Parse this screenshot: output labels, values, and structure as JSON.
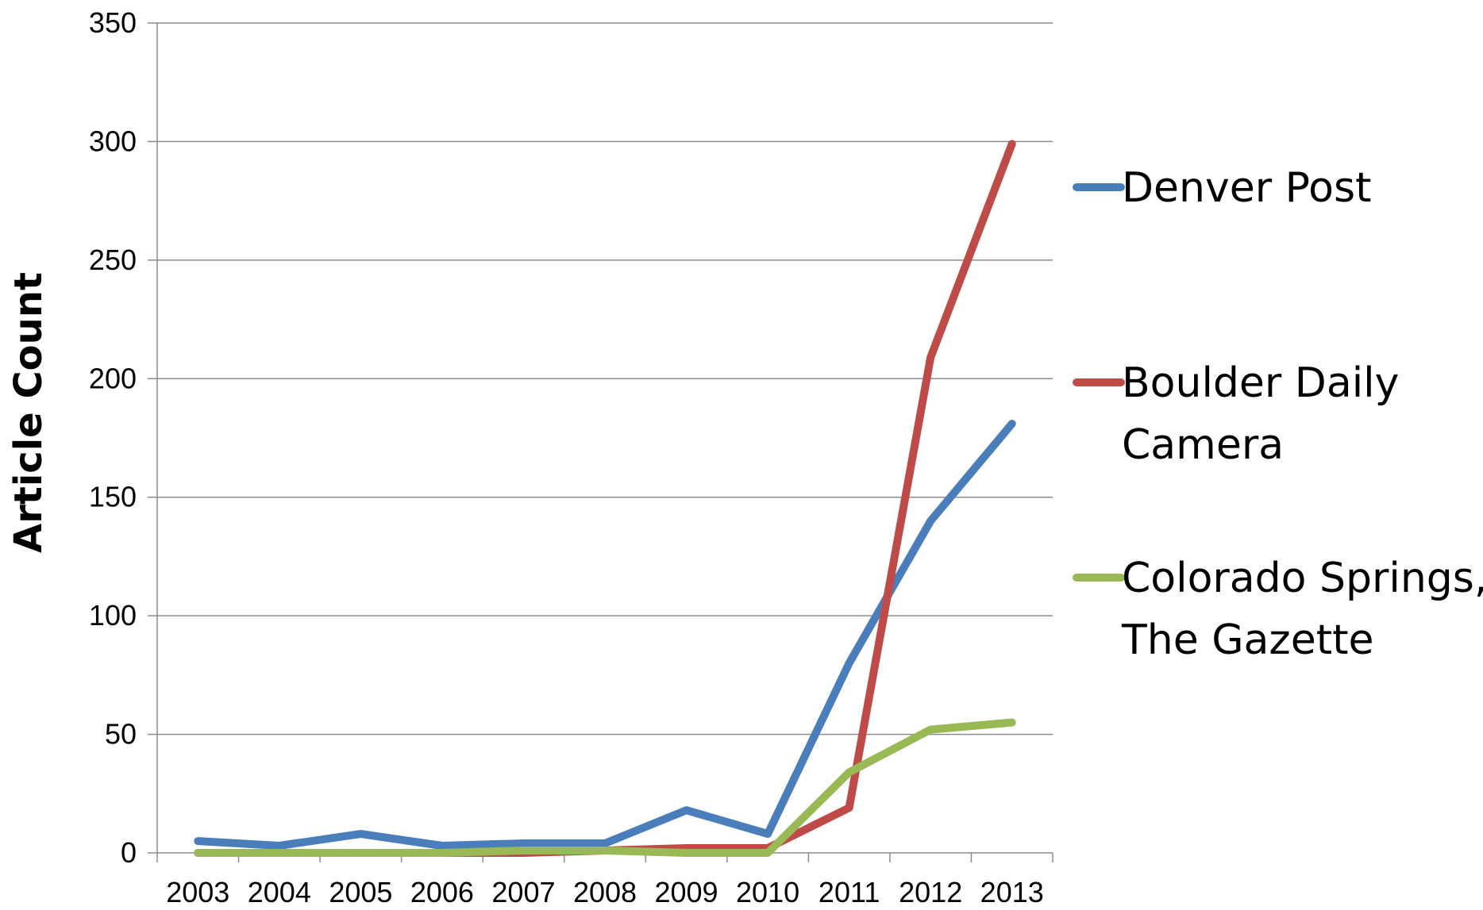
{
  "chart_data": {
    "type": "line",
    "ylabel": "Article Count",
    "xlabel": "",
    "ylim": [
      0,
      350
    ],
    "yticks": [
      0,
      50,
      100,
      150,
      200,
      250,
      300,
      350
    ],
    "grid": "horizontal",
    "legend_position": "right",
    "categories": [
      "2003",
      "2004",
      "2005",
      "2006",
      "2007",
      "2008",
      "2009",
      "2010",
      "2011",
      "2012",
      "2013"
    ],
    "series": [
      {
        "name": "Denver Post",
        "legend_lines": [
          "Denver Post"
        ],
        "color": "#4a7ebb",
        "values": [
          5,
          3,
          8,
          3,
          4,
          4,
          18,
          8,
          80,
          140,
          181
        ]
      },
      {
        "name": "Boulder Daily Camera",
        "legend_lines": [
          "Boulder Daily",
          "Camera"
        ],
        "color": "#be4b48",
        "values": [
          0,
          0,
          0,
          0,
          0,
          1,
          2,
          2,
          19,
          209,
          299
        ]
      },
      {
        "name": "Colorado Springs, The Gazette",
        "legend_lines": [
          "Colorado Springs,",
          "The Gazette"
        ],
        "color": "#98b954",
        "values": [
          0,
          0,
          0,
          0,
          1,
          1,
          0,
          0,
          34,
          52,
          55
        ]
      }
    ]
  }
}
